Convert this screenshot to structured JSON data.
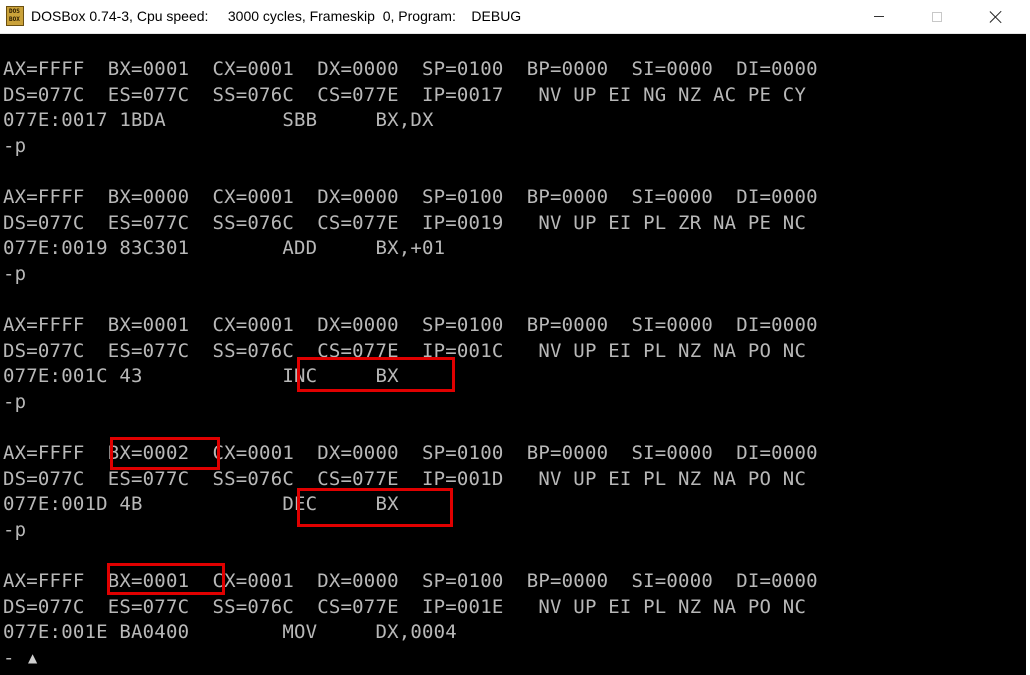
{
  "window": {
    "title": "DOSBox 0.74-3, Cpu speed:     3000 cycles, Frameskip  0, Program:    DEBUG",
    "icon_text": [
      "DOS",
      "BOX"
    ],
    "buttons": {
      "minimize": "minimize-icon",
      "maximize": "maximize-icon",
      "close": "close-icon"
    }
  },
  "console": {
    "lines": [
      "AX=FFFF  BX=0001  CX=0001  DX=0000  SP=0100  BP=0000  SI=0000  DI=0000",
      "DS=077C  ES=077C  SS=076C  CS=077E  IP=0017   NV UP EI NG NZ AC PE CY",
      "077E:0017 1BDA          SBB     BX,DX",
      "-p",
      "",
      "AX=FFFF  BX=0000  CX=0001  DX=0000  SP=0100  BP=0000  SI=0000  DI=0000",
      "DS=077C  ES=077C  SS=076C  CS=077E  IP=0019   NV UP EI PL ZR NA PE NC",
      "077E:0019 83C301        ADD     BX,+01",
      "-p",
      "",
      "AX=FFFF  BX=0001  CX=0001  DX=0000  SP=0100  BP=0000  SI=0000  DI=0000",
      "DS=077C  ES=077C  SS=076C  CS=077E  IP=001C   NV UP EI PL NZ NA PO NC",
      "077E:001C 43            INC     BX",
      "-p",
      "",
      "AX=FFFF  BX=0002  CX=0001  DX=0000  SP=0100  BP=0000  SI=0000  DI=0000",
      "DS=077C  ES=077C  SS=076C  CS=077E  IP=001D   NV UP EI PL NZ NA PO NC",
      "077E:001D 4B            DEC     BX",
      "-p",
      "",
      "AX=FFFF  BX=0001  CX=0001  DX=0000  SP=0100  BP=0000  SI=0000  DI=0000",
      "DS=077C  ES=077C  SS=076C  CS=077E  IP=001E   NV UP EI PL NZ NA PO NC",
      "077E:001E BA0400        MOV     DX,0004",
      "-"
    ],
    "cursor_glyph": "▲"
  },
  "colors": {
    "console_bg": "#000000",
    "console_text": "#b8b8b8",
    "highlight_border": "#e00000",
    "titlebar_bg": "#ffffff"
  }
}
